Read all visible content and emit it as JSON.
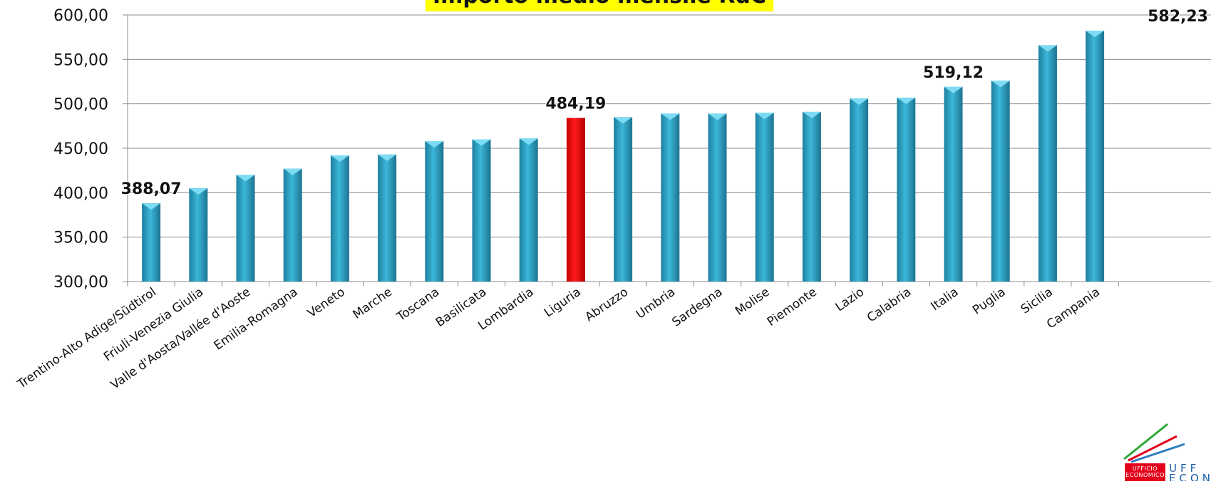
{
  "chart_data": {
    "type": "bar",
    "title": "Importo medio mensile RdC",
    "categories": [
      "Trentino-Alto Adige/Südtirol",
      "Friuli-Venezia Giulia",
      "Valle d'Aosta/Vallée d'Aoste",
      "Emilia-Romagna",
      "Veneto",
      "Marche",
      "Toscana",
      "Basilicata",
      "Lombardia",
      "Liguria",
      "Abruzzo",
      "Umbria",
      "Sardegna",
      "Molise",
      "Piemonte",
      "Lazio",
      "Calabria",
      "Italia",
      "Puglia",
      "Sicilia",
      "Campania"
    ],
    "values": [
      388.07,
      405,
      420,
      427,
      442,
      443,
      458,
      460,
      461,
      484.19,
      485,
      489,
      489,
      490,
      491,
      506,
      507,
      519.12,
      526,
      566,
      582.23
    ],
    "highlight": "Liguria",
    "data_labels": [
      {
        "category": "Trentino-Alto Adige/Südtirol",
        "text": "388,07"
      },
      {
        "category": "Liguria",
        "text": "484,19"
      },
      {
        "category": "Italia",
        "text": "519,12"
      },
      {
        "category": "Campania",
        "text": "582,23"
      }
    ],
    "yticks": [
      "300,00",
      "350,00",
      "400,00",
      "450,00",
      "500,00",
      "550,00",
      "600,00"
    ],
    "ylim": [
      300,
      600
    ],
    "xlabel": "",
    "ylabel": "",
    "grid": true,
    "colors": {
      "bar": "#2ea3c7",
      "highlight": "#ff0000",
      "grid": "#8c8c8c"
    }
  },
  "logo": {
    "stamp_text": [
      "UFFICIO",
      "ECONOMICO"
    ],
    "word_text": [
      "UFF",
      "ECONO"
    ],
    "stripe_colors": [
      "#2ea836",
      "#e3001b",
      "#2f7fc1"
    ]
  }
}
